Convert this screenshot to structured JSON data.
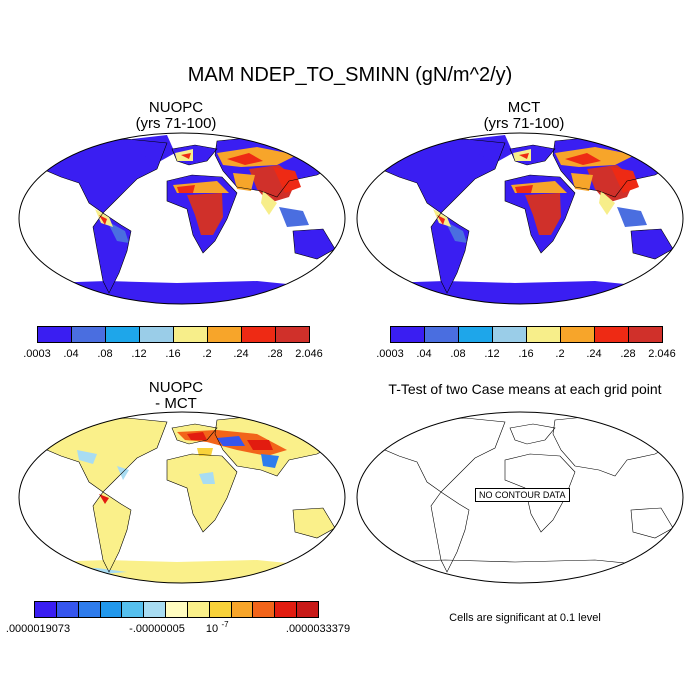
{
  "title": "MAM NDEP_TO_SMINN (gN/m^2/y)",
  "panels": [
    {
      "id": "nuopc",
      "title_line1": "NUOPC",
      "title_line2": "(yrs 71-100)"
    },
    {
      "id": "mct",
      "title_line1": "MCT",
      "title_line2": "(yrs 71-100)"
    },
    {
      "id": "diff",
      "title_line1": "NUOPC",
      "title_line2": "- MCT"
    },
    {
      "id": "ttest",
      "title_line1": "T-Test of two Case means at each grid point"
    }
  ],
  "colorbar_main": {
    "colors": [
      "#3a1ef2",
      "#4a6ee0",
      "#1ea6ea",
      "#9acde8",
      "#f7ee8a",
      "#f7a52a",
      "#ee2a14",
      "#d0302a"
    ],
    "labels": [
      ".0003",
      ".04",
      ".08",
      ".12",
      ".16",
      ".2",
      ".24",
      ".28",
      "2.046"
    ]
  },
  "colorbar_diff": {
    "colors": [
      "#3a1ef2",
      "#3656ee",
      "#2e7cec",
      "#2298ec",
      "#56c0ee",
      "#a8dcf2",
      "#fffcc0",
      "#faf08a",
      "#f8d23a",
      "#f7a52a",
      "#f2641a",
      "#e21c10",
      "#c81a18"
    ],
    "labels": [
      ".0000019073",
      "-.00000005",
      "10",
      "-7",
      ".0000033379"
    ]
  },
  "no_contour_label": "NO CONTOUR DATA",
  "significance_note": "Cells are significant at 0.1 level"
}
